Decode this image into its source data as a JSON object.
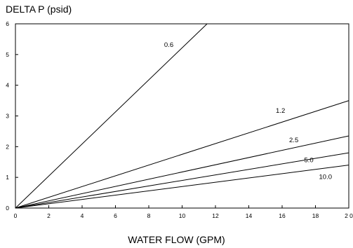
{
  "chart_data": {
    "type": "line",
    "title": "",
    "ylabel": "DELTA P (psid)",
    "xlabel": "WATER FLOW (GPM)",
    "xlim": [
      0,
      20
    ],
    "ylim": [
      0,
      6
    ],
    "x_ticks": [
      0,
      2,
      4,
      6,
      8,
      10,
      12,
      14,
      16,
      18,
      20
    ],
    "x_tick_labels": [
      "0",
      "2",
      "4",
      "6",
      "8",
      "10",
      "12",
      "14",
      "16",
      "18",
      "2 0"
    ],
    "y_ticks": [
      0,
      1,
      2,
      3,
      4,
      5,
      6
    ],
    "y_tick_labels": [
      "0",
      "1",
      "2",
      "3",
      "4",
      "5",
      "6"
    ],
    "grid": false,
    "legend": "none",
    "series": [
      {
        "name": "0.6",
        "x": [
          0,
          11.5
        ],
        "y": [
          0,
          6.0
        ]
      },
      {
        "name": "1.2",
        "x": [
          0,
          20
        ],
        "y": [
          0,
          3.5
        ]
      },
      {
        "name": "2.5",
        "x": [
          0,
          20
        ],
        "y": [
          0,
          2.35
        ]
      },
      {
        "name": "5.0",
        "x": [
          0,
          20
        ],
        "y": [
          0,
          1.8
        ]
      },
      {
        "name": "10.0",
        "x": [
          0,
          20
        ],
        "y": [
          0,
          1.4
        ]
      }
    ]
  }
}
